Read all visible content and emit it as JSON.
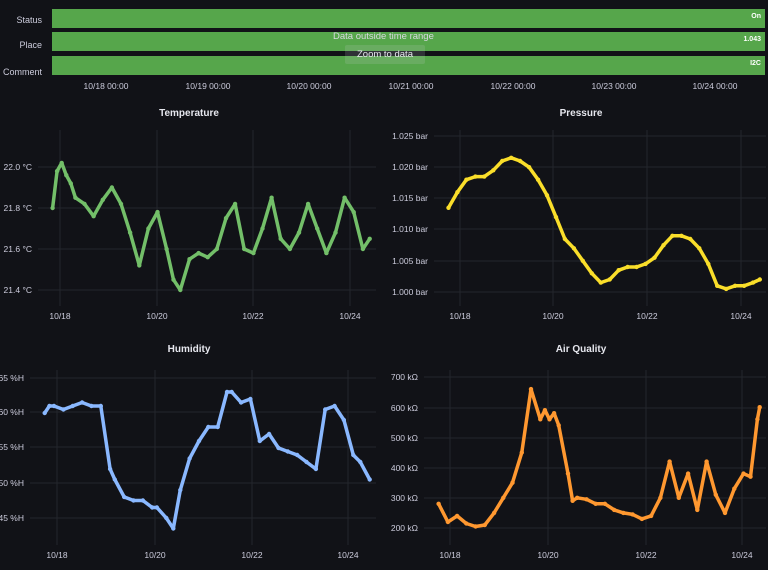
{
  "state_timeline": {
    "rows": [
      {
        "label": "Status",
        "value": "On",
        "color": "#56a64b"
      },
      {
        "label": "Place",
        "value": "1.043",
        "color": "#56a64b"
      },
      {
        "label": "Comment",
        "value": "I2C",
        "color": "#56a64b"
      }
    ],
    "message": "Data outside time range",
    "zoom_button": "Zoom to data",
    "time_labels": [
      "10/18 00:00",
      "10/19 00:00",
      "10/20 00:00",
      "10/21 00:00",
      "10/22 00:00",
      "10/23 00:00",
      "10/24 00:00"
    ]
  },
  "chart_data": [
    {
      "type": "scatter",
      "title": "Temperature",
      "color": "#73bf69",
      "x_ticks": [
        "10/18",
        "10/20",
        "10/22",
        "10/24"
      ],
      "y_ticks": [
        "22.0 °C",
        "21.8 °C",
        "21.6 °C",
        "21.4 °C"
      ],
      "ylim": [
        21.35,
        22.1
      ],
      "xlim": [
        17.5,
        24.6
      ],
      "x": [
        17.6,
        17.7,
        17.8,
        17.9,
        18.0,
        18.1,
        18.3,
        18.5,
        18.7,
        18.9,
        19.1,
        19.3,
        19.5,
        19.7,
        19.9,
        20.1,
        20.25,
        20.4,
        20.6,
        20.8,
        21.0,
        21.2,
        21.4,
        21.6,
        21.8,
        22.0,
        22.2,
        22.4,
        22.6,
        22.8,
        23.0,
        23.2,
        23.4,
        23.6,
        23.8,
        24.0,
        24.2,
        24.4,
        24.55
      ],
      "y": [
        21.8,
        21.98,
        22.02,
        21.96,
        21.92,
        21.85,
        21.82,
        21.76,
        21.84,
        21.9,
        21.82,
        21.68,
        21.52,
        21.7,
        21.78,
        21.6,
        21.45,
        21.4,
        21.55,
        21.58,
        21.56,
        21.6,
        21.75,
        21.82,
        21.6,
        21.58,
        21.7,
        21.85,
        21.65,
        21.6,
        21.68,
        21.82,
        21.7,
        21.58,
        21.68,
        21.85,
        21.78,
        21.6,
        21.65
      ]
    },
    {
      "type": "scatter",
      "title": "Pressure",
      "color": "#fade2a",
      "x_ticks": [
        "10/18",
        "10/20",
        "10/22",
        "10/24"
      ],
      "y_ticks": [
        "1.025 bar",
        "1.020 bar",
        "1.015 bar",
        "1.010 bar",
        "1.005 bar",
        "1.000 bar"
      ],
      "ylim": [
        0.998,
        1.026
      ],
      "xlim": [
        17.5,
        24.6
      ],
      "x": [
        17.6,
        17.8,
        18.0,
        18.2,
        18.4,
        18.6,
        18.8,
        19.0,
        19.2,
        19.4,
        19.6,
        19.8,
        20.0,
        20.2,
        20.4,
        20.6,
        20.8,
        21.0,
        21.2,
        21.4,
        21.6,
        21.8,
        22.0,
        22.2,
        22.4,
        22.6,
        22.8,
        23.0,
        23.2,
        23.4,
        23.6,
        23.8,
        24.0,
        24.2,
        24.4,
        24.55
      ],
      "y": [
        1.0135,
        1.016,
        1.018,
        1.0185,
        1.0185,
        1.0195,
        1.021,
        1.0215,
        1.021,
        1.02,
        1.018,
        1.0155,
        1.012,
        1.0085,
        1.007,
        1.005,
        1.003,
        1.0015,
        1.002,
        1.0035,
        1.004,
        1.004,
        1.0045,
        1.0055,
        1.0075,
        1.009,
        1.009,
        1.0085,
        1.007,
        1.0045,
        1.001,
        1.0005,
        1.001,
        1.001,
        1.0015,
        1.002
      ]
    },
    {
      "type": "scatter",
      "title": "Humidity",
      "color": "#8ab8ff",
      "x_ticks": [
        "10/18",
        "10/20",
        "10/22",
        "10/24"
      ],
      "y_ticks": [
        "65 %H",
        "60 %H",
        "55 %H",
        "50 %H",
        "45 %H"
      ],
      "ylim": [
        43,
        66
      ],
      "xlim": [
        17.5,
        24.6
      ],
      "x": [
        17.6,
        17.7,
        17.8,
        18.0,
        18.2,
        18.4,
        18.6,
        18.8,
        19.0,
        19.1,
        19.3,
        19.5,
        19.7,
        19.9,
        20.0,
        20.2,
        20.35,
        20.5,
        20.7,
        20.9,
        21.1,
        21.3,
        21.5,
        21.6,
        21.8,
        22.0,
        22.2,
        22.4,
        22.6,
        22.8,
        23.0,
        23.2,
        23.4,
        23.6,
        23.8,
        24.0,
        24.2,
        24.35,
        24.55
      ],
      "y": [
        60,
        61,
        61,
        60.5,
        61,
        61.5,
        61,
        61,
        52,
        50.5,
        48,
        47.5,
        47.5,
        46.5,
        46.5,
        45,
        43.5,
        49,
        53.5,
        56,
        58,
        58,
        63,
        63,
        61.5,
        62,
        56,
        57,
        55,
        54.5,
        54,
        53,
        52,
        60.5,
        61,
        59,
        54,
        53,
        50.5
      ]
    },
    {
      "type": "scatter",
      "title": "Air Quality",
      "color": "#ff9830",
      "x_ticks": [
        "10/18",
        "10/20",
        "10/22",
        "10/24"
      ],
      "y_ticks": [
        "700 kΩ",
        "600 kΩ",
        "500 kΩ",
        "400 kΩ",
        "300 kΩ",
        "200 kΩ"
      ],
      "ylim": [
        180,
        720
      ],
      "xlim": [
        17.5,
        24.6
      ],
      "x": [
        17.6,
        17.8,
        18.0,
        18.2,
        18.4,
        18.6,
        18.8,
        19.0,
        19.2,
        19.4,
        19.6,
        19.8,
        19.9,
        20.0,
        20.1,
        20.2,
        20.4,
        20.5,
        20.6,
        20.8,
        21.0,
        21.2,
        21.4,
        21.6,
        21.8,
        22.0,
        22.2,
        22.4,
        22.6,
        22.8,
        23.0,
        23.2,
        23.4,
        23.6,
        23.8,
        24.0,
        24.2,
        24.35,
        24.5,
        24.55
      ],
      "y": [
        280,
        220,
        240,
        215,
        205,
        210,
        250,
        300,
        350,
        450,
        660,
        560,
        590,
        560,
        580,
        540,
        380,
        290,
        300,
        295,
        280,
        280,
        260,
        250,
        245,
        230,
        240,
        300,
        420,
        300,
        380,
        260,
        420,
        310,
        250,
        330,
        380,
        370,
        560,
        600
      ]
    }
  ]
}
